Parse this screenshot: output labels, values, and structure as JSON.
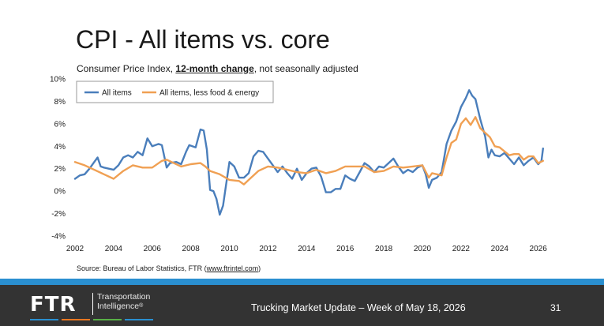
{
  "slide": {
    "title": "CPI - All items vs. core",
    "subtitle_pre": "Consumer Price Index, ",
    "subtitle_emph": "12-month change",
    "subtitle_post": ", not seasonally adjusted",
    "source_pre": "Source: Bureau of Labor Statistics, FTR (",
    "source_link": "www.ftrintel.com",
    "source_post": ")"
  },
  "footer": {
    "logo": "FTR",
    "brand_line1": "Transportation",
    "brand_line2": "Intelligence",
    "trademark": "®",
    "text": "Trucking Market Update – Week of May 18, 2026",
    "page_number": "31",
    "accent_color": "#2a8fd0",
    "stripe_colors": [
      "#2a8fd0",
      "#e87722",
      "#58b046",
      "#2a8fd0"
    ]
  },
  "chart_data": {
    "type": "line",
    "title": "",
    "xlabel": "",
    "ylabel": "",
    "xlim": [
      2002,
      2026.3
    ],
    "ylim": [
      -4,
      10
    ],
    "x_ticks": [
      2002,
      2004,
      2006,
      2008,
      2010,
      2012,
      2014,
      2016,
      2018,
      2020,
      2022,
      2024,
      2026
    ],
    "y_ticks": [
      -4,
      -2,
      0,
      2,
      4,
      6,
      8,
      10
    ],
    "y_tick_labels": [
      "-4%",
      "-2%",
      "0%",
      "2%",
      "4%",
      "6%",
      "8%",
      "10%"
    ],
    "grid": false,
    "legend_position": "top-left",
    "series": [
      {
        "name": "All items",
        "color": "#4a7ebb",
        "points": [
          [
            2002.0,
            1.1
          ],
          [
            2002.25,
            1.4
          ],
          [
            2002.5,
            1.5
          ],
          [
            2002.75,
            2.0
          ],
          [
            2003.0,
            2.6
          ],
          [
            2003.17,
            3.0
          ],
          [
            2003.33,
            2.2
          ],
          [
            2003.5,
            2.1
          ],
          [
            2003.75,
            2.0
          ],
          [
            2004.0,
            1.9
          ],
          [
            2004.25,
            2.3
          ],
          [
            2004.5,
            3.0
          ],
          [
            2004.75,
            3.2
          ],
          [
            2005.0,
            3.0
          ],
          [
            2005.25,
            3.5
          ],
          [
            2005.5,
            3.2
          ],
          [
            2005.75,
            4.7
          ],
          [
            2006.0,
            4.0
          ],
          [
            2006.33,
            4.2
          ],
          [
            2006.5,
            4.1
          ],
          [
            2006.75,
            2.1
          ],
          [
            2006.92,
            2.5
          ],
          [
            2007.25,
            2.6
          ],
          [
            2007.5,
            2.4
          ],
          [
            2007.75,
            3.5
          ],
          [
            2007.92,
            4.1
          ],
          [
            2008.25,
            3.9
          ],
          [
            2008.5,
            5.5
          ],
          [
            2008.67,
            5.4
          ],
          [
            2008.83,
            3.7
          ],
          [
            2009.0,
            0.1
          ],
          [
            2009.17,
            0.0
          ],
          [
            2009.33,
            -0.7
          ],
          [
            2009.5,
            -2.1
          ],
          [
            2009.67,
            -1.3
          ],
          [
            2009.83,
            0.6
          ],
          [
            2010.0,
            2.6
          ],
          [
            2010.25,
            2.2
          ],
          [
            2010.5,
            1.2
          ],
          [
            2010.75,
            1.2
          ],
          [
            2011.0,
            1.6
          ],
          [
            2011.25,
            3.1
          ],
          [
            2011.5,
            3.6
          ],
          [
            2011.75,
            3.5
          ],
          [
            2012.0,
            2.9
          ],
          [
            2012.25,
            2.3
          ],
          [
            2012.5,
            1.7
          ],
          [
            2012.75,
            2.2
          ],
          [
            2013.0,
            1.6
          ],
          [
            2013.25,
            1.1
          ],
          [
            2013.5,
            2.0
          ],
          [
            2013.75,
            1.0
          ],
          [
            2014.0,
            1.6
          ],
          [
            2014.25,
            2.0
          ],
          [
            2014.5,
            2.1
          ],
          [
            2014.75,
            1.3
          ],
          [
            2015.0,
            -0.1
          ],
          [
            2015.25,
            -0.1
          ],
          [
            2015.5,
            0.2
          ],
          [
            2015.75,
            0.2
          ],
          [
            2016.0,
            1.4
          ],
          [
            2016.25,
            1.1
          ],
          [
            2016.5,
            0.9
          ],
          [
            2016.75,
            1.7
          ],
          [
            2017.0,
            2.5
          ],
          [
            2017.25,
            2.2
          ],
          [
            2017.5,
            1.7
          ],
          [
            2017.75,
            2.2
          ],
          [
            2018.0,
            2.1
          ],
          [
            2018.25,
            2.5
          ],
          [
            2018.5,
            2.9
          ],
          [
            2018.75,
            2.2
          ],
          [
            2019.0,
            1.6
          ],
          [
            2019.25,
            1.9
          ],
          [
            2019.5,
            1.7
          ],
          [
            2019.75,
            2.1
          ],
          [
            2020.0,
            2.3
          ],
          [
            2020.17,
            1.5
          ],
          [
            2020.33,
            0.3
          ],
          [
            2020.5,
            1.0
          ],
          [
            2020.75,
            1.2
          ],
          [
            2021.0,
            1.7
          ],
          [
            2021.25,
            4.2
          ],
          [
            2021.5,
            5.4
          ],
          [
            2021.75,
            6.2
          ],
          [
            2022.0,
            7.5
          ],
          [
            2022.25,
            8.3
          ],
          [
            2022.42,
            9.0
          ],
          [
            2022.58,
            8.5
          ],
          [
            2022.75,
            8.2
          ],
          [
            2023.0,
            6.4
          ],
          [
            2023.25,
            4.9
          ],
          [
            2023.42,
            3.0
          ],
          [
            2023.58,
            3.7
          ],
          [
            2023.75,
            3.2
          ],
          [
            2024.0,
            3.1
          ],
          [
            2024.25,
            3.4
          ],
          [
            2024.5,
            2.9
          ],
          [
            2024.75,
            2.4
          ],
          [
            2025.0,
            3.0
          ],
          [
            2025.25,
            2.3
          ],
          [
            2025.5,
            2.7
          ],
          [
            2025.75,
            3.0
          ],
          [
            2026.0,
            2.4
          ],
          [
            2026.17,
            2.7
          ],
          [
            2026.25,
            3.8
          ]
        ]
      },
      {
        "name": "All items, less food & energy",
        "color": "#f0a053",
        "points": [
          [
            2002.0,
            2.6
          ],
          [
            2002.5,
            2.3
          ],
          [
            2003.0,
            1.9
          ],
          [
            2003.5,
            1.5
          ],
          [
            2004.0,
            1.1
          ],
          [
            2004.5,
            1.8
          ],
          [
            2005.0,
            2.3
          ],
          [
            2005.5,
            2.1
          ],
          [
            2006.0,
            2.1
          ],
          [
            2006.5,
            2.7
          ],
          [
            2006.75,
            2.8
          ],
          [
            2007.0,
            2.6
          ],
          [
            2007.5,
            2.2
          ],
          [
            2008.0,
            2.4
          ],
          [
            2008.5,
            2.5
          ],
          [
            2008.75,
            2.2
          ],
          [
            2009.0,
            1.8
          ],
          [
            2009.5,
            1.5
          ],
          [
            2010.0,
            1.0
          ],
          [
            2010.5,
            0.9
          ],
          [
            2010.75,
            0.6
          ],
          [
            2011.0,
            1.0
          ],
          [
            2011.5,
            1.8
          ],
          [
            2012.0,
            2.2
          ],
          [
            2012.5,
            2.1
          ],
          [
            2013.0,
            1.9
          ],
          [
            2013.5,
            1.7
          ],
          [
            2014.0,
            1.6
          ],
          [
            2014.5,
            1.9
          ],
          [
            2015.0,
            1.6
          ],
          [
            2015.5,
            1.8
          ],
          [
            2016.0,
            2.2
          ],
          [
            2016.5,
            2.2
          ],
          [
            2017.0,
            2.2
          ],
          [
            2017.5,
            1.7
          ],
          [
            2018.0,
            1.8
          ],
          [
            2018.5,
            2.2
          ],
          [
            2019.0,
            2.1
          ],
          [
            2019.5,
            2.2
          ],
          [
            2020.0,
            2.3
          ],
          [
            2020.33,
            1.2
          ],
          [
            2020.5,
            1.6
          ],
          [
            2021.0,
            1.4
          ],
          [
            2021.25,
            3.0
          ],
          [
            2021.5,
            4.3
          ],
          [
            2021.75,
            4.6
          ],
          [
            2022.0,
            6.0
          ],
          [
            2022.25,
            6.5
          ],
          [
            2022.5,
            5.9
          ],
          [
            2022.75,
            6.6
          ],
          [
            2023.0,
            5.6
          ],
          [
            2023.5,
            4.8
          ],
          [
            2023.75,
            4.0
          ],
          [
            2024.0,
            3.9
          ],
          [
            2024.5,
            3.2
          ],
          [
            2024.75,
            3.3
          ],
          [
            2025.0,
            3.3
          ],
          [
            2025.25,
            2.8
          ],
          [
            2025.5,
            3.1
          ],
          [
            2025.75,
            3.1
          ],
          [
            2026.0,
            2.5
          ],
          [
            2026.25,
            2.7
          ]
        ]
      }
    ]
  }
}
